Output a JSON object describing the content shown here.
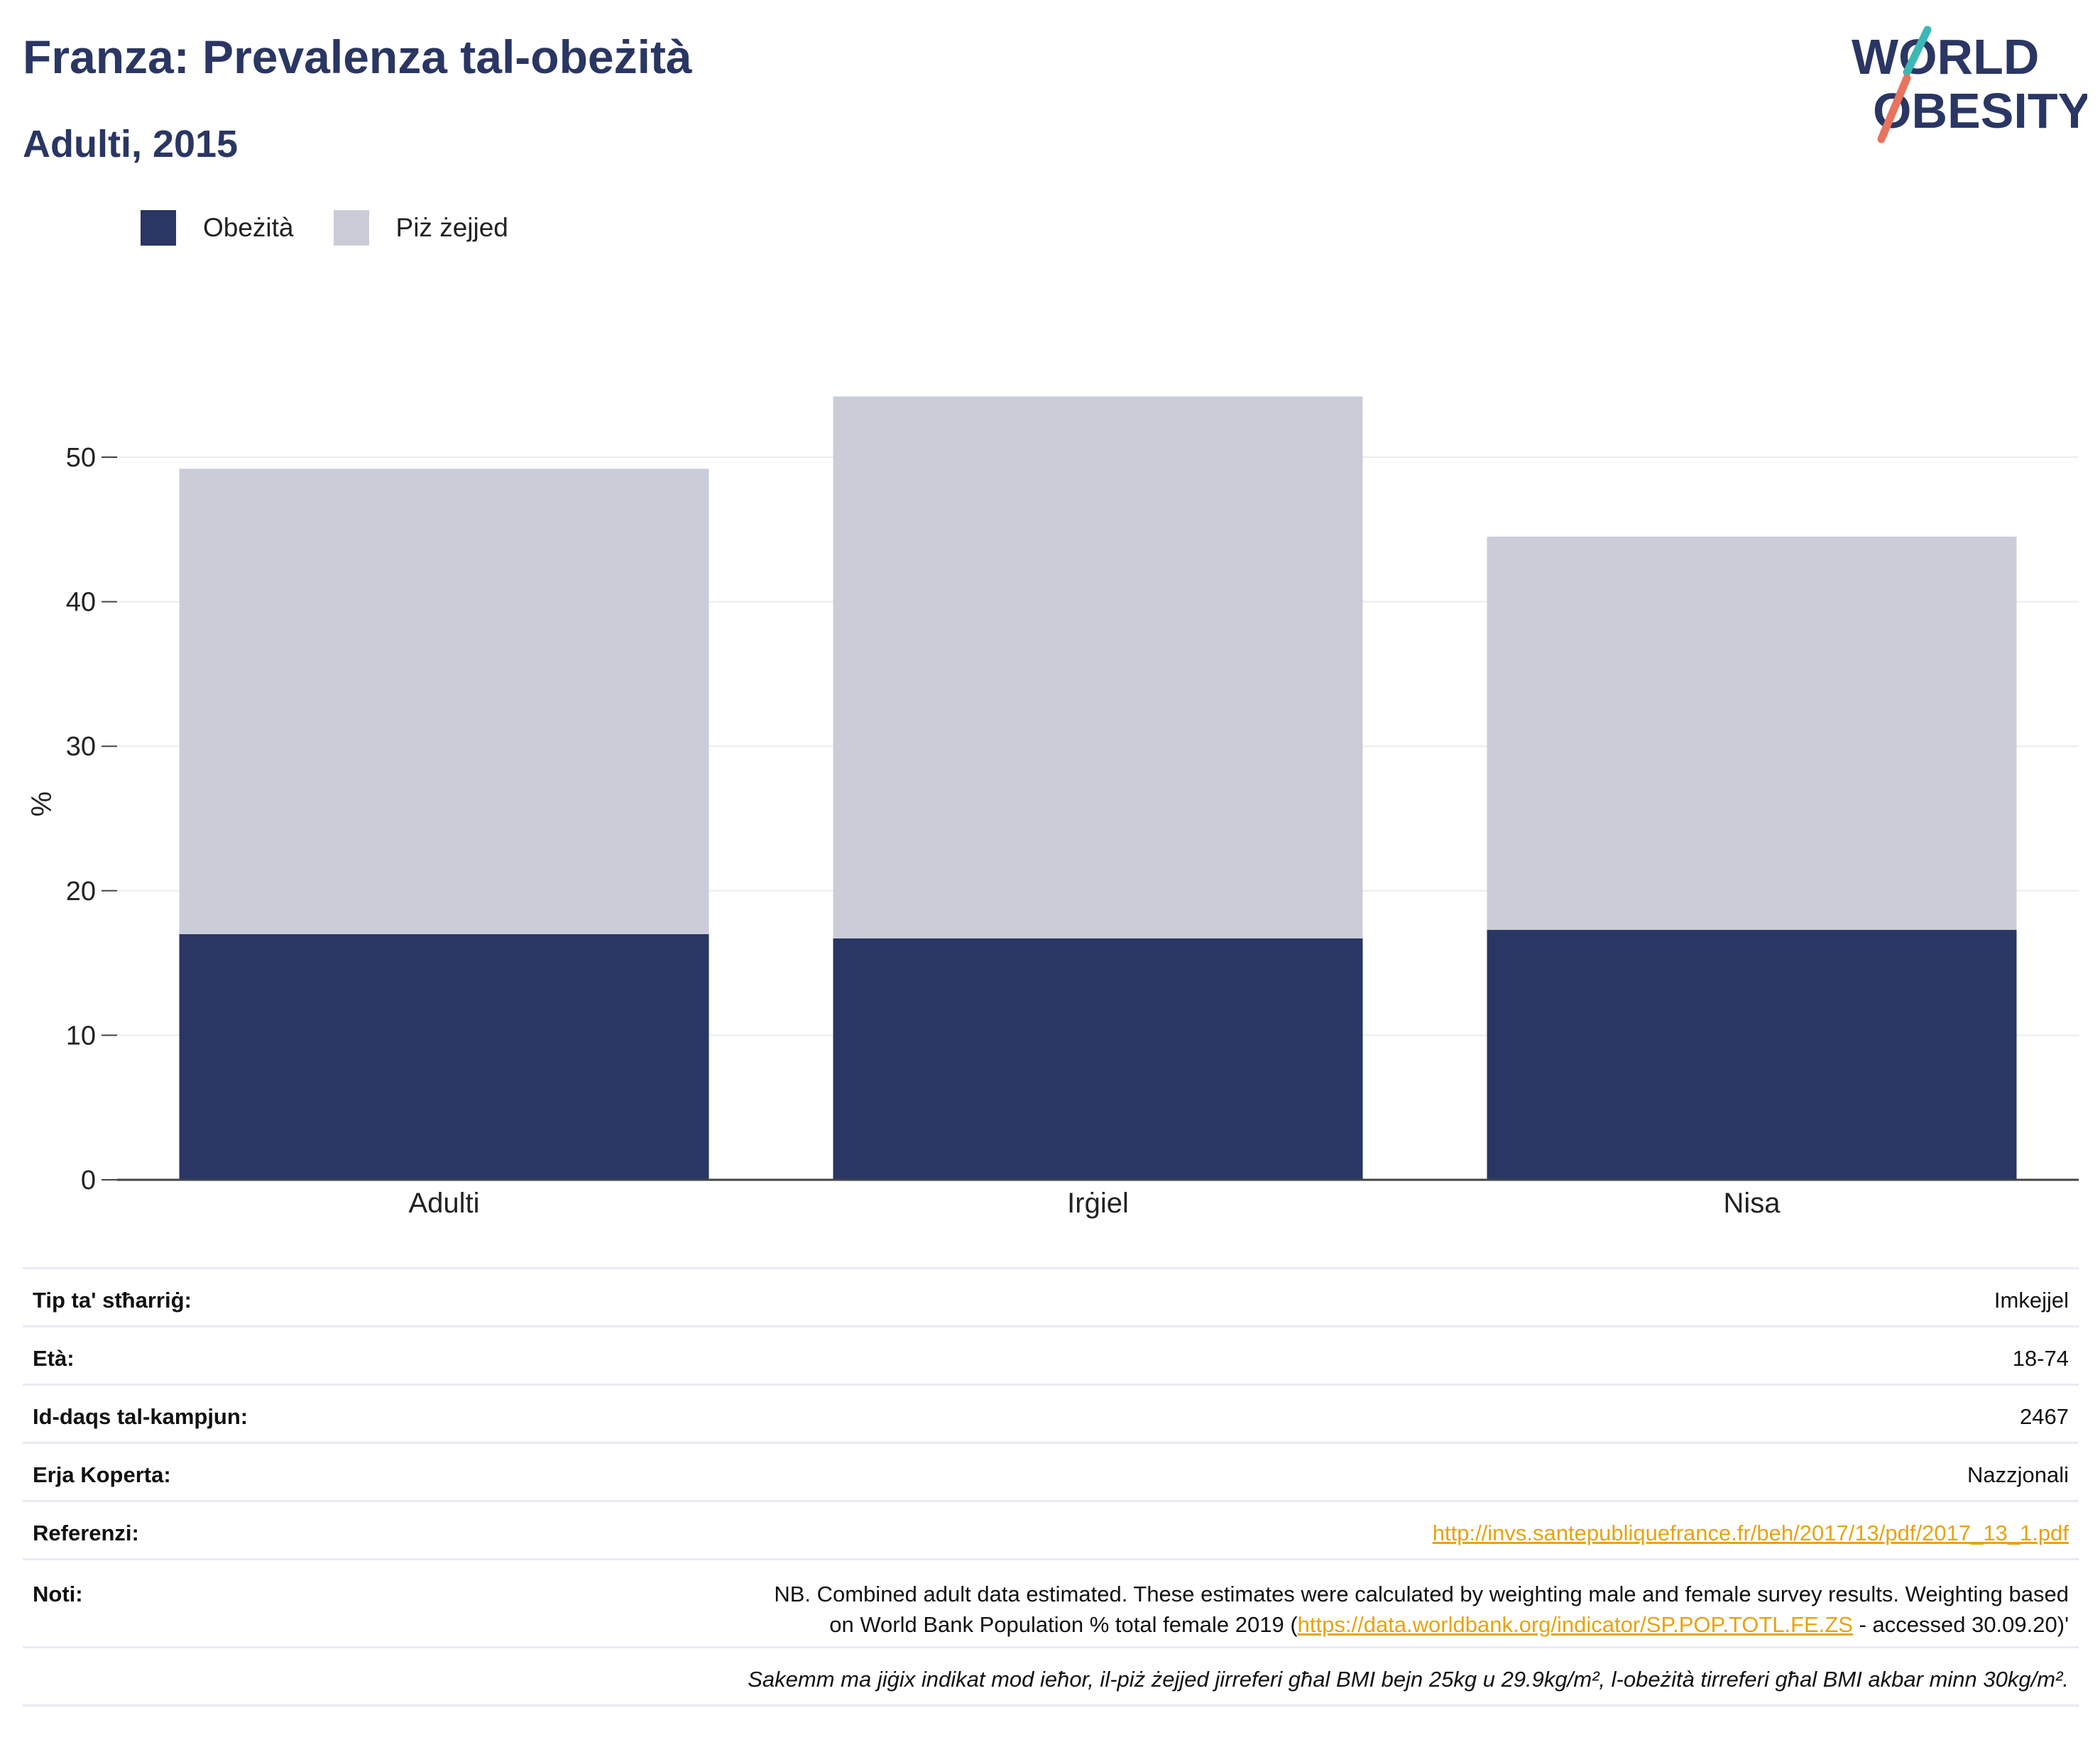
{
  "header": {
    "title": "Franza: Prevalenza tal-obeżità",
    "subtitle": "Adulti, 2015"
  },
  "logo": {
    "line1": "WORLD",
    "line2": "OBESITY"
  },
  "legend": {
    "items": [
      {
        "label": "Obeżità",
        "color": "#2a3663"
      },
      {
        "label": "Piż żejjed",
        "color": "#cacdd8"
      }
    ]
  },
  "chart_data": {
    "type": "bar",
    "stacked": true,
    "categories": [
      "Adulti",
      "Irġiel",
      "Nisa"
    ],
    "series": [
      {
        "name": "Obeżità",
        "values": [
          17.0,
          16.7,
          17.3
        ],
        "color": "#2a3663"
      },
      {
        "name": "Piż żejjed",
        "values": [
          32.2,
          37.5,
          27.2
        ],
        "color": "#cacdd8"
      }
    ],
    "ylabel": "%",
    "ylim": [
      0,
      55
    ],
    "yticks": [
      0,
      10,
      20,
      30,
      40,
      50
    ],
    "grid": true,
    "legend_position": "top-left"
  },
  "info": {
    "survey_type_label": "Tip ta' stħarriġ:",
    "survey_type_value": "Imkejjel",
    "age_label": "Età:",
    "age_value": "18-74",
    "sample_size_label": "Id-daqs tal-kampjun:",
    "sample_size_value": "2467",
    "area_label": "Erja Koperta:",
    "area_value": "Nazzjonali",
    "references_label": "Referenzi:",
    "references_value": "http://invs.santepubliquefrance.fr/beh/2017/13/pdf/2017_13_1.pdf",
    "notes_label": "Noti:",
    "notes_line1": "NB. Combined adult data estimated. These estimates were calculated by weighting male and female survey results. Weighting based",
    "notes_line2_pre": "on World Bank Population % total female 2019 (",
    "notes_link": "https://data.worldbank.org/indicator/SP.POP.TOTL.FE.ZS",
    "notes_line2_post": " - accessed 30.09.20)'",
    "footnote": "Sakemm ma jiġix indikat mod ieħor, il-piż żejjed jirreferi għal BMI bejn 25kg u 29.9kg/m², l-obeżità tirreferi għal BMI akbar minn 30kg/m²."
  }
}
